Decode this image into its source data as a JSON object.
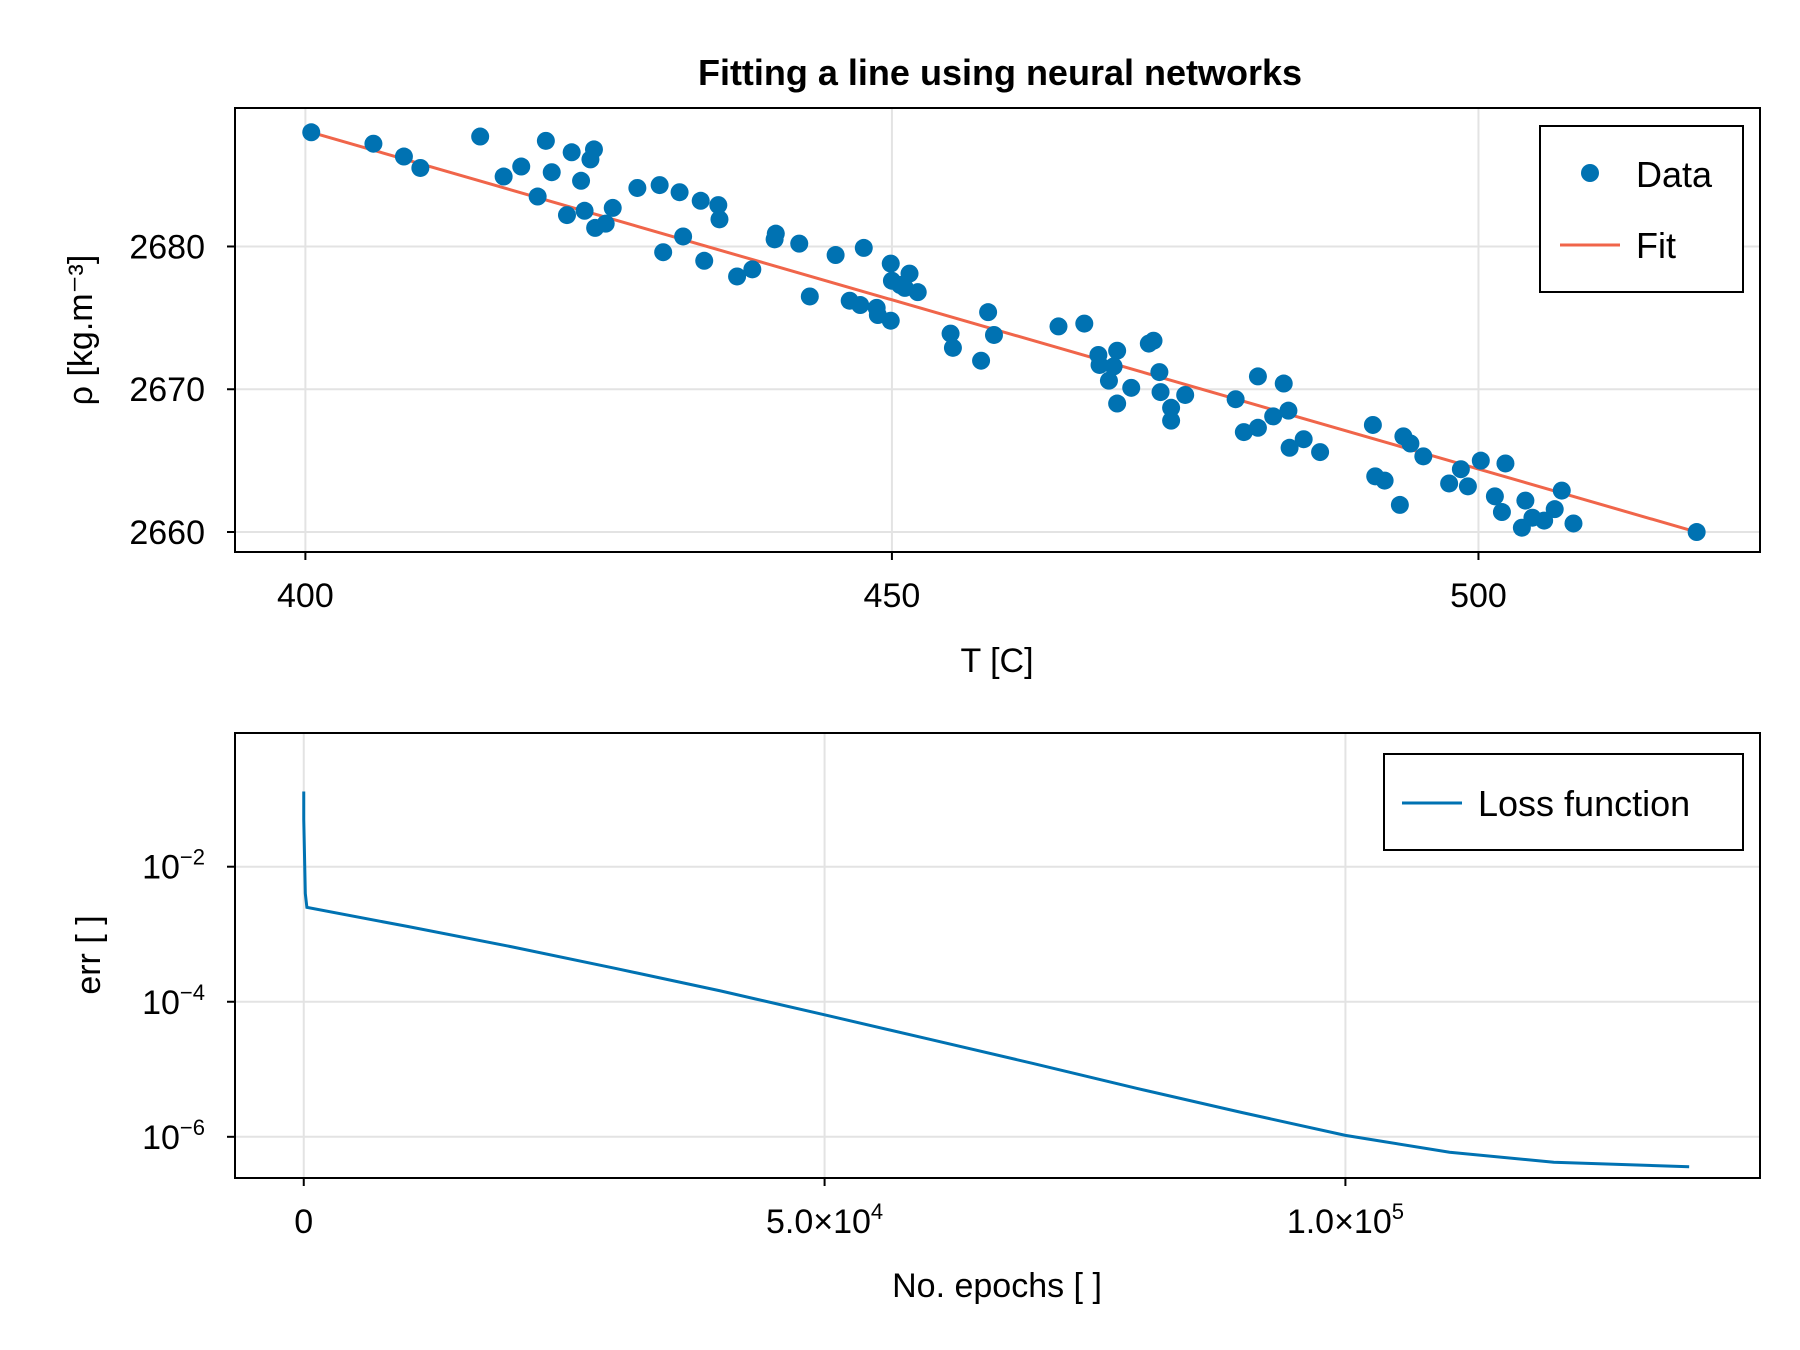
{
  "chart_data": [
    {
      "type": "scatter",
      "title": "Fitting a line using neural networks",
      "xlabel": "T [C]",
      "ylabel": "ρ [kg.m⁻³]",
      "xlim": [
        394,
        524
      ],
      "ylim": [
        2658.6,
        2689.7
      ],
      "xticks": [
        400,
        450,
        500
      ],
      "yticks": [
        2660,
        2670,
        2680
      ],
      "grid": true,
      "legend_position": "top-right",
      "colors": {
        "data": "#0072b2",
        "fit": "#f0654a",
        "grid": "#e3e3e3"
      },
      "series": [
        {
          "name": "Data",
          "kind": "scatter",
          "points": [
            [
              400.5,
              2688.0
            ],
            [
              405.8,
              2687.2
            ],
            [
              408.4,
              2686.3
            ],
            [
              409.8,
              2685.5
            ],
            [
              414.9,
              2687.7
            ],
            [
              416.9,
              2684.9
            ],
            [
              418.4,
              2685.6
            ],
            [
              419.8,
              2683.5
            ],
            [
              420.5,
              2687.4
            ],
            [
              421.0,
              2685.2
            ],
            [
              422.3,
              2682.2
            ],
            [
              422.7,
              2686.6
            ],
            [
              423.5,
              2684.6
            ],
            [
              423.8,
              2682.5
            ],
            [
              424.3,
              2686.1
            ],
            [
              424.6,
              2686.8
            ],
            [
              424.7,
              2681.3
            ],
            [
              425.6,
              2681.6
            ],
            [
              426.2,
              2682.7
            ],
            [
              428.3,
              2684.1
            ],
            [
              430.2,
              2684.3
            ],
            [
              430.5,
              2679.6
            ],
            [
              431.9,
              2683.8
            ],
            [
              432.2,
              2680.7
            ],
            [
              433.7,
              2683.2
            ],
            [
              434.0,
              2679.0
            ],
            [
              435.2,
              2682.9
            ],
            [
              435.3,
              2681.9
            ],
            [
              436.8,
              2677.9
            ],
            [
              438.1,
              2678.4
            ],
            [
              440.0,
              2680.5
            ],
            [
              440.1,
              2680.9
            ],
            [
              442.1,
              2680.2
            ],
            [
              443.0,
              2676.5
            ],
            [
              445.2,
              2679.4
            ],
            [
              446.4,
              2676.2
            ],
            [
              447.3,
              2675.9
            ],
            [
              447.6,
              2679.9
            ],
            [
              448.7,
              2675.7
            ],
            [
              448.8,
              2675.2
            ],
            [
              449.9,
              2678.8
            ],
            [
              449.9,
              2674.8
            ],
            [
              450.0,
              2677.6
            ],
            [
              450.7,
              2677.3
            ],
            [
              451.1,
              2677.1
            ],
            [
              451.5,
              2678.1
            ],
            [
              452.2,
              2676.8
            ],
            [
              455.0,
              2673.9
            ],
            [
              455.2,
              2672.9
            ],
            [
              457.6,
              2672.0
            ],
            [
              458.2,
              2675.4
            ],
            [
              458.7,
              2673.8
            ],
            [
              464.2,
              2674.4
            ],
            [
              466.4,
              2674.6
            ],
            [
              467.6,
              2672.4
            ],
            [
              467.7,
              2671.7
            ],
            [
              468.5,
              2670.6
            ],
            [
              468.9,
              2671.6
            ],
            [
              469.2,
              2672.7
            ],
            [
              469.2,
              2669.0
            ],
            [
              470.4,
              2670.1
            ],
            [
              471.9,
              2673.2
            ],
            [
              472.3,
              2673.4
            ],
            [
              472.8,
              2671.2
            ],
            [
              472.9,
              2669.8
            ],
            [
              473.8,
              2668.7
            ],
            [
              473.8,
              2667.8
            ],
            [
              475.0,
              2669.6
            ],
            [
              479.3,
              2669.3
            ],
            [
              480.0,
              2667.0
            ],
            [
              481.2,
              2667.3
            ],
            [
              481.2,
              2670.9
            ],
            [
              482.5,
              2668.1
            ],
            [
              483.4,
              2670.4
            ],
            [
              483.8,
              2668.5
            ],
            [
              483.9,
              2665.9
            ],
            [
              485.1,
              2666.5
            ],
            [
              486.5,
              2665.6
            ],
            [
              491.0,
              2667.5
            ],
            [
              491.2,
              2663.9
            ],
            [
              492.0,
              2663.6
            ],
            [
              493.3,
              2661.9
            ],
            [
              493.6,
              2666.7
            ],
            [
              494.2,
              2666.2
            ],
            [
              495.3,
              2665.3
            ],
            [
              497.5,
              2663.4
            ],
            [
              498.5,
              2664.4
            ],
            [
              499.1,
              2663.2
            ],
            [
              500.2,
              2665.0
            ],
            [
              501.4,
              2662.5
            ],
            [
              502.0,
              2661.4
            ],
            [
              502.3,
              2664.8
            ],
            [
              503.7,
              2660.3
            ],
            [
              504.0,
              2662.2
            ],
            [
              504.6,
              2661.0
            ],
            [
              505.6,
              2660.8
            ],
            [
              506.5,
              2661.6
            ],
            [
              507.1,
              2662.9
            ],
            [
              508.1,
              2660.6
            ],
            [
              518.6,
              2660.0
            ]
          ]
        },
        {
          "name": "Fit",
          "kind": "line",
          "points": [
            [
              400.5,
              2688.0
            ],
            [
              518.6,
              2660.0
            ]
          ]
        }
      ]
    },
    {
      "type": "line",
      "title": "",
      "xlabel": "No. epochs [ ]",
      "ylabel": "err [ ]",
      "yscale": "log",
      "xlim": [
        -6600,
        139800
      ],
      "ylim_log10": [
        -6.61,
        -0.02
      ],
      "xticks": [
        0,
        50000,
        100000
      ],
      "xtick_labels": [
        {
          "mantissa": "0",
          "exp": ""
        },
        {
          "mantissa": "5.0×10",
          "exp": "4"
        },
        {
          "mantissa": "1.0×10",
          "exp": "5"
        }
      ],
      "yticks_log10": [
        -2,
        -4,
        -6
      ],
      "ytick_labels": [
        {
          "mantissa": "10",
          "exp": "−2"
        },
        {
          "mantissa": "10",
          "exp": "−4"
        },
        {
          "mantissa": "10",
          "exp": "−6"
        }
      ],
      "grid": true,
      "legend_position": "top-right",
      "colors": {
        "line": "#0072b2",
        "grid": "#e3e3e3"
      },
      "series": [
        {
          "name": "Loss function",
          "x": [
            0,
            0,
            150,
            300,
            10000,
            20000,
            30000,
            40000,
            50000,
            60000,
            70000,
            80000,
            90000,
            100000,
            110000,
            120000,
            133000
          ],
          "y": [
            0.13,
            0.05,
            0.004,
            0.0025,
            0.0013,
            0.00065,
            0.00031,
            0.000145,
            6.4e-05,
            2.8e-05,
            1.22e-05,
            5.2e-06,
            2.3e-06,
            1.05e-06,
            5.9e-07,
            4.2e-07,
            3.6e-07
          ]
        }
      ]
    }
  ]
}
